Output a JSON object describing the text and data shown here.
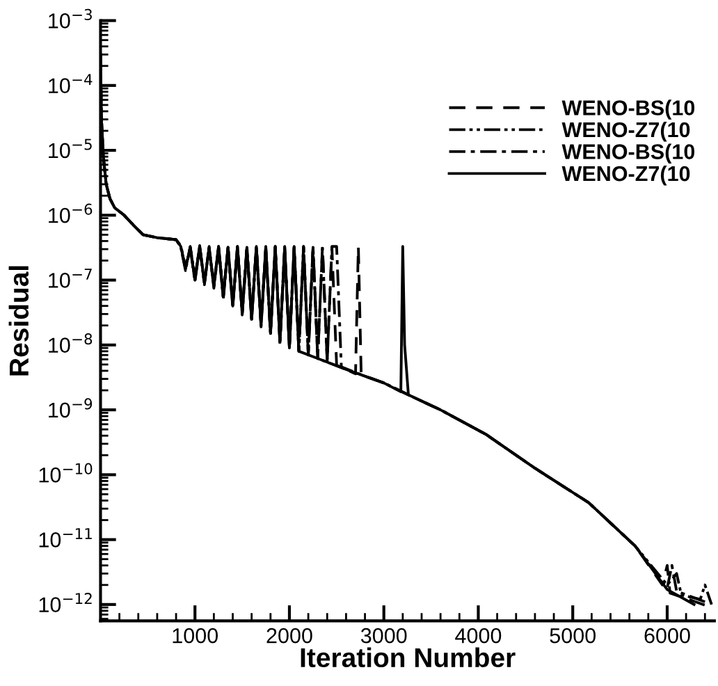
{
  "chart_data": {
    "type": "line",
    "xlabel": "Iteration Number",
    "ylabel": "Residual",
    "log": "y",
    "xlim": [
      0,
      6500
    ],
    "ylim": [
      5.6e-13,
      0.001
    ],
    "xticks": [
      1000,
      2000,
      3000,
      4000,
      5000,
      6000
    ],
    "yticks": [
      {
        "value": 0.001,
        "label": "10$^{−3}$"
      },
      {
        "value": 0.0001,
        "label": "10$^{−4}$"
      },
      {
        "value": 1e-05,
        "label": "10$^{−5}$"
      },
      {
        "value": 1e-06,
        "label": "10$^{−6}$"
      },
      {
        "value": 1e-07,
        "label": "10$^{−7}$"
      },
      {
        "value": 1e-08,
        "label": "10$^{−8}$"
      },
      {
        "value": 1e-09,
        "label": "10$^{−9}$"
      },
      {
        "value": 1e-10,
        "label": "10$^{−10}$"
      },
      {
        "value": 1e-11,
        "label": "10$^{−11}$"
      },
      {
        "value": 1e-12,
        "label": "10$^{−12}$"
      }
    ],
    "grid": false,
    "legend": "top right",
    "marker": "none",
    "series": [
      {
        "name": "WENO-BS(10",
        "color": "#000000",
        "line_style": "dashed",
        "x": [
          0,
          10,
          30,
          60,
          100,
          150,
          250,
          350,
          450,
          600,
          800,
          850,
          900,
          950,
          1000,
          1050,
          1100,
          1150,
          1200,
          1250,
          1300,
          1350,
          1400,
          1450,
          1500,
          1550,
          1600,
          1650,
          1700,
          1750,
          1800,
          1850,
          1900,
          1950,
          2000,
          2050,
          2100,
          2150,
          2200,
          2250,
          2300,
          2350,
          2400,
          2450,
          2500,
          2700,
          2730,
          2760,
          3000,
          3260,
          3600,
          4080,
          4600,
          5170,
          5660,
          5950,
          6000,
          6030,
          6300,
          6470
        ],
        "values": [
          0.0003,
          3e-05,
          8e-06,
          3e-06,
          1.8e-06,
          1.3e-06,
          1e-06,
          7e-07,
          5e-07,
          4.5e-07,
          4.2e-07,
          3.3e-07,
          1.5e-07,
          3.2e-07,
          1e-07,
          3.4e-07,
          9e-08,
          3.1e-07,
          8e-08,
          3.3e-07,
          5.5e-08,
          3.2e-07,
          4e-08,
          3.3e-07,
          3e-08,
          3.1e-07,
          2.5e-08,
          3.3e-07,
          2e-08,
          3.2e-07,
          1.5e-08,
          3.3e-07,
          1.1e-08,
          3.2e-07,
          9e-09,
          3.3e-07,
          8e-09,
          3.3e-07,
          7e-09,
          3.2e-07,
          6.2e-09,
          3.3e-07,
          5.5e-09,
          3.2e-07,
          4.9e-09,
          3.6e-09,
          3.3e-07,
          3.5e-09,
          2.6e-09,
          1.7e-09,
          1e-09,
          4.2e-10,
          1.26e-10,
          3.7e-11,
          8e-12,
          2e-12,
          4e-12,
          1.5e-12,
          1.1e-12,
          9e-13
        ]
      },
      {
        "name": "WENO-Z7(10",
        "color": "#000000",
        "line_style": "dashdotdot",
        "x": [
          0,
          10,
          30,
          60,
          100,
          150,
          250,
          350,
          450,
          600,
          800,
          850,
          900,
          950,
          1000,
          1050,
          1100,
          1150,
          1200,
          1250,
          1300,
          1350,
          1400,
          1450,
          1500,
          1550,
          1600,
          1650,
          1700,
          1750,
          1800,
          1850,
          1900,
          1950,
          2000,
          2050,
          2100,
          2150,
          2200,
          2250,
          2300,
          2600,
          3000,
          3260,
          3600,
          4080,
          4600,
          5170,
          5660,
          5900,
          6000,
          6100,
          6150,
          6350,
          6400,
          6470
        ],
        "values": [
          0.0003,
          3e-05,
          8e-06,
          3e-06,
          1.8e-06,
          1.3e-06,
          1e-06,
          7e-07,
          5e-07,
          4.5e-07,
          4.2e-07,
          3.2e-07,
          1.4e-07,
          3.3e-07,
          1.1e-07,
          3.2e-07,
          8.5e-08,
          3.3e-07,
          7.5e-08,
          3.1e-07,
          5e-08,
          3.3e-07,
          4.2e-08,
          3.2e-07,
          3.2e-08,
          3.3e-07,
          2.4e-08,
          3.2e-07,
          2.1e-08,
          3.3e-07,
          1.4e-08,
          3.2e-07,
          1.2e-08,
          3.3e-07,
          9.5e-09,
          3.2e-07,
          8e-09,
          3.3e-07,
          7e-09,
          3.1e-07,
          6.2e-09,
          4.2e-09,
          2.6e-09,
          1.7e-09,
          1e-09,
          4.2e-10,
          1.26e-10,
          3.7e-11,
          8e-12,
          3e-12,
          2e-12,
          3e-12,
          1.4e-12,
          1.2e-12,
          2e-12,
          1e-12
        ]
      },
      {
        "name": "WENO-BS(10",
        "color": "#000000",
        "line_style": "dashdot",
        "x": [
          0,
          10,
          30,
          60,
          100,
          150,
          250,
          350,
          450,
          600,
          800,
          850,
          900,
          950,
          1000,
          1050,
          1100,
          1150,
          1200,
          1250,
          1300,
          1350,
          1400,
          1450,
          1500,
          1550,
          1600,
          1650,
          1700,
          1750,
          1800,
          1850,
          1900,
          1950,
          2000,
          2050,
          2100,
          2150,
          2200,
          2250,
          2300,
          2350,
          2400,
          2450,
          2500,
          2550,
          2800,
          3000,
          3260,
          3600,
          4080,
          4600,
          5170,
          5660,
          6000,
          6050,
          6100,
          6400
        ],
        "values": [
          0.0003,
          3e-05,
          8e-06,
          3e-06,
          1.8e-06,
          1.3e-06,
          1e-06,
          7e-07,
          5e-07,
          4.5e-07,
          4.2e-07,
          3.4e-07,
          1.6e-07,
          3.1e-07,
          9.5e-08,
          3.3e-07,
          9e-08,
          3.2e-07,
          8.2e-08,
          3.3e-07,
          6e-08,
          3.1e-07,
          3.8e-08,
          3.3e-07,
          2.9e-08,
          3.2e-07,
          2.6e-08,
          3.3e-07,
          1.9e-08,
          3.1e-07,
          1.6e-08,
          3.3e-07,
          1e-08,
          3.1e-07,
          9e-09,
          3.2e-07,
          8.2e-09,
          3.2e-07,
          7.2e-09,
          3.3e-07,
          6.4e-09,
          3.1e-07,
          5.6e-09,
          3.3e-07,
          3.3e-07,
          4.6e-09,
          3.3e-09,
          2.6e-09,
          1.7e-09,
          1e-09,
          4.2e-10,
          1.26e-10,
          3.7e-11,
          8e-12,
          1.8e-12,
          4e-12,
          1.6e-12,
          1.1e-12
        ]
      },
      {
        "name": "WENO-Z7(10",
        "color": "#000000",
        "line_style": "solid",
        "x": [
          0,
          10,
          30,
          60,
          100,
          150,
          250,
          350,
          450,
          600,
          800,
          850,
          900,
          950,
          1000,
          1050,
          1100,
          1150,
          1200,
          1250,
          1300,
          1350,
          1400,
          1450,
          1500,
          1550,
          1600,
          1650,
          1700,
          1750,
          1800,
          1850,
          1900,
          1950,
          2000,
          2050,
          2100,
          2300,
          2600,
          2800,
          3000,
          3180,
          3200,
          3220,
          3260,
          3600,
          4080,
          4600,
          5170,
          5660,
          6000,
          6285
        ],
        "values": [
          0.0003,
          3e-05,
          8e-06,
          3e-06,
          1.8e-06,
          1.3e-06,
          1e-06,
          7e-07,
          5e-07,
          4.5e-07,
          4.2e-07,
          3.3e-07,
          1.5e-07,
          3.2e-07,
          1e-07,
          3.4e-07,
          9e-08,
          3.1e-07,
          8e-08,
          3.3e-07,
          5.5e-08,
          3.2e-07,
          4e-08,
          3.3e-07,
          3e-08,
          3.1e-07,
          2.5e-08,
          3.3e-07,
          2e-08,
          3.2e-07,
          1.5e-08,
          3.3e-07,
          1.1e-08,
          3.2e-07,
          9e-09,
          3.3e-07,
          8e-09,
          6.2e-09,
          4.2e-09,
          3.3e-09,
          2.6e-09,
          1.9e-09,
          3.3e-07,
          1e-08,
          1.7e-09,
          1e-09,
          4.2e-10,
          1.26e-10,
          3.7e-11,
          8e-12,
          1.7e-12,
          1e-12
        ]
      }
    ]
  }
}
